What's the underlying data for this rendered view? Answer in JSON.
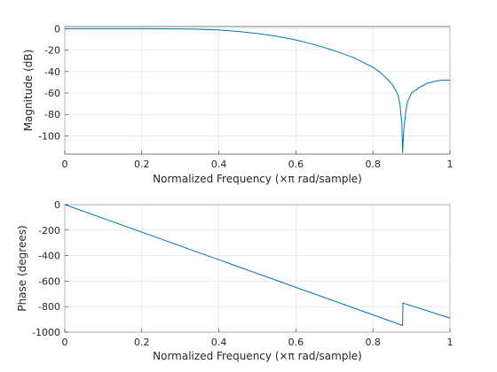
{
  "chart_data": [
    {
      "type": "line",
      "xlabel": "Normalized Frequency  (×π rad/sample)",
      "ylabel": "Magnitude (dB)",
      "xlim": [
        0,
        1
      ],
      "ylim": [
        -117,
        2
      ],
      "xticks": [
        "0",
        "0.2",
        "0.4",
        "0.6",
        "0.8",
        "1"
      ],
      "yticks": [
        "0",
        "-20",
        "-40",
        "-60",
        "-80",
        "-100"
      ],
      "grid": true,
      "color": "#0072bd",
      "series": [
        {
          "x": [
            0,
            0.1,
            0.2,
            0.3,
            0.35,
            0.4,
            0.45,
            0.5,
            0.55,
            0.6,
            0.65,
            0.7,
            0.75,
            0.8,
            0.82,
            0.84,
            0.85,
            0.86,
            0.865,
            0.87,
            0.875,
            0.877,
            0.88,
            0.885,
            0.89,
            0.9,
            0.92,
            0.94,
            0.96,
            0.98,
            1.0
          ],
          "y": [
            0,
            0,
            0,
            -0.2,
            -0.5,
            -1.2,
            -2.5,
            -4.5,
            -7,
            -10.5,
            -15,
            -20.5,
            -27,
            -36,
            -41,
            -48,
            -52,
            -58,
            -62,
            -70,
            -88,
            -116,
            -95,
            -78,
            -68,
            -60,
            -55,
            -51,
            -49,
            -48,
            -48
          ]
        }
      ]
    },
    {
      "type": "line",
      "xlabel": "Normalized Frequency  (×π rad/sample)",
      "ylabel": "Phase (degrees)",
      "xlim": [
        0,
        1
      ],
      "ylim": [
        -1000,
        0
      ],
      "xticks": [
        "0",
        "0.2",
        "0.4",
        "0.6",
        "0.8",
        "1"
      ],
      "yticks": [
        "0",
        "-200",
        "-400",
        "-600",
        "-800",
        "-1000"
      ],
      "grid": true,
      "color": "#0072bd",
      "series": [
        {
          "x": [
            0,
            0.877,
            0.877,
            0.878,
            1.0
          ],
          "y": [
            0,
            -948,
            -948,
            -772,
            -890
          ]
        }
      ]
    }
  ]
}
